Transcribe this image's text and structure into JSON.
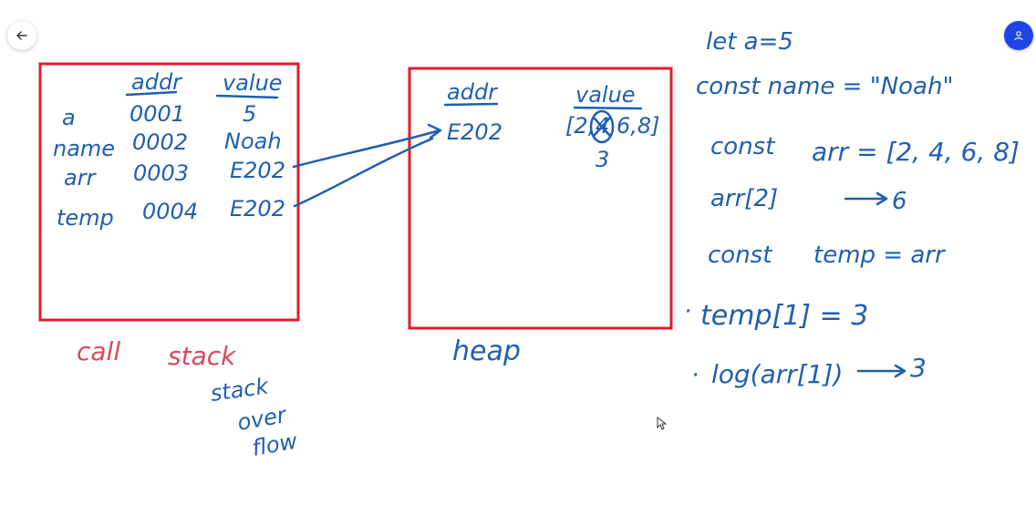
{
  "colors": {
    "ink_blue": "#1f5fb0",
    "ink_red": "#e21b2d",
    "label_red": "#d84a5a",
    "avatar_bg": "#1e45e8"
  },
  "toolbar": {
    "back_icon": "arrow-left-icon",
    "profile_icon": "user-icon"
  },
  "call_stack": {
    "header_addr": "addr",
    "header_value": "value",
    "rows": [
      {
        "name": "a",
        "addr": "0001",
        "value": "5"
      },
      {
        "name": "name",
        "addr": "0002",
        "value": "Noah"
      },
      {
        "name": "arr",
        "addr": "0003",
        "value": "E202"
      },
      {
        "name": "temp",
        "addr": "0004",
        "value": "E202"
      }
    ],
    "label_word1": "call",
    "label_word2": "stack",
    "overflow_line1": "stack",
    "overflow_line2": "over",
    "overflow_line3": "flow"
  },
  "heap": {
    "header_addr": "addr",
    "header_value": "value",
    "entry_addr": "E202",
    "entry_value_start": "[2,",
    "entry_value_crossed": "4",
    "entry_value_end": "6,8]",
    "entry_value_replacement": "3",
    "label": "heap"
  },
  "code_lines": {
    "line1": "let a=5",
    "line2": "const name = \"Noah\"",
    "line3_kw": "const",
    "line3_rest": "arr = [2, 4, 6, 8]",
    "line4_expr": "arr[2]",
    "line4_result": "6",
    "line5_kw": "const",
    "line5_rest": "temp = arr",
    "line6_bullet": "·",
    "line6": "temp[1] = 3",
    "line7_bullet": "·",
    "line7_expr": "log(arr[1])",
    "line7_result": "3"
  }
}
